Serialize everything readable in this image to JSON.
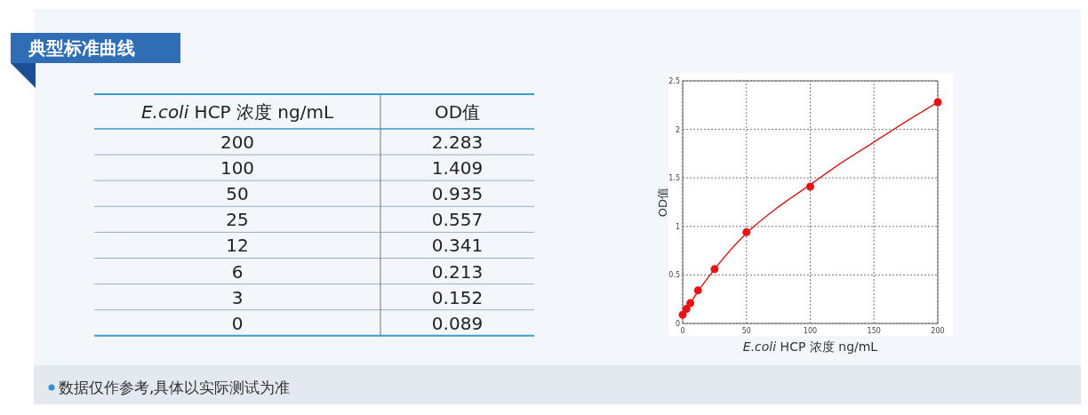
{
  "chart_data": [
    {
      "type": "other",
      "title": "典型标准曲线",
      "xlabel": "E.coli HCP 浓度 ng/mL",
      "ylabel": "OD值",
      "annotations": [
        "数据仅作参考,具体以实际测试为准"
      ],
      "categories": [
        "200",
        "100",
        "50",
        "25",
        "12",
        "6",
        "3",
        "0"
      ],
      "values": [
        2.283,
        1.409,
        0.935,
        0.557,
        0.341,
        0.213,
        0.152,
        0.089
      ],
      "data_labels": true
    },
    {
      "type": "scatter",
      "xlabel": "E.coli HCP 浓度 ng/mL",
      "ylabel": "OD值",
      "xlim": [
        0,
        200
      ],
      "xticks": [
        0,
        50,
        100,
        150,
        200
      ],
      "ylim": [
        0,
        2.5
      ],
      "yticks": [
        0,
        0.5,
        1,
        1.5,
        2,
        2.5
      ],
      "grid": true,
      "series": [
        {
          "type": "line",
          "color": "#cc2222",
          "marker": "none",
          "line_style": "solid",
          "x": [
            0,
            3,
            6,
            12,
            25,
            50,
            75,
            100,
            125,
            150,
            175,
            200
          ],
          "values": [
            0.09,
            0.15,
            0.21,
            0.33,
            0.56,
            0.93,
            1.2,
            1.43,
            1.66,
            1.87,
            2.08,
            2.28
          ]
        },
        {
          "type": "scatter",
          "color": "#ee1111",
          "marker": "circle",
          "x": [
            200,
            100,
            50,
            25,
            12,
            6,
            3,
            0
          ],
          "values": [
            2.28,
            1.41,
            0.94,
            0.56,
            0.34,
            0.21,
            0.15,
            0.09
          ]
        }
      ]
    }
  ]
}
